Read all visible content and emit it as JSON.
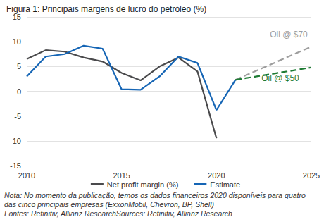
{
  "chart_data": {
    "type": "line",
    "title": "Figura 1: Principais margens de lucro do petróleo (%)",
    "series": [
      {
        "name": "Net profit margin (%)",
        "color": "#4a4a4c",
        "line_style": "solid",
        "x": [
          2010,
          2011,
          2012,
          2013,
          2014,
          2015,
          2016,
          2017,
          2018,
          2019,
          2020
        ],
        "values": [
          6.5,
          8.3,
          8,
          6.8,
          6,
          3.7,
          2.2,
          5,
          6.8,
          4,
          -9.5
        ]
      },
      {
        "name": "Estimate",
        "color": "#1565b5",
        "line_style": "solid",
        "x": [
          2010,
          2011,
          2012,
          2013,
          2014,
          2015,
          2016,
          2017,
          2018,
          2019,
          2020,
          2021
        ],
        "values": [
          3,
          7,
          7.5,
          9.2,
          8.6,
          0.4,
          0.3,
          3,
          7,
          5.7,
          -3.8,
          2.3
        ]
      },
      {
        "name": "Oil @ $70",
        "color": "#9e9e9e",
        "line_style": "dashed",
        "x": [
          2021,
          2025
        ],
        "values": [
          2.3,
          9
        ]
      },
      {
        "name": "Oil @ $50",
        "color": "#1e7b34",
        "line_style": "dashed",
        "x": [
          2021,
          2025
        ],
        "values": [
          2.3,
          4.8
        ]
      }
    ],
    "xlim": [
      2010,
      2025
    ],
    "xticks": [
      2010,
      2015,
      2020,
      2025
    ],
    "ylim": [
      -15,
      15
    ],
    "yticks": [
      -15,
      -10,
      -5,
      0,
      5,
      10,
      15
    ],
    "grid": true,
    "legend": "bottom",
    "note": "Nota: No momento da publicação, temos os dados financeiros 2020 disponíveis para quatro das cinco principais empresas (ExxonMobil, Chevron, BP, Shell)",
    "source": "Fontes: Refinitiv, Allianz ResearchSources: Refinitiv, Allianz Research"
  }
}
